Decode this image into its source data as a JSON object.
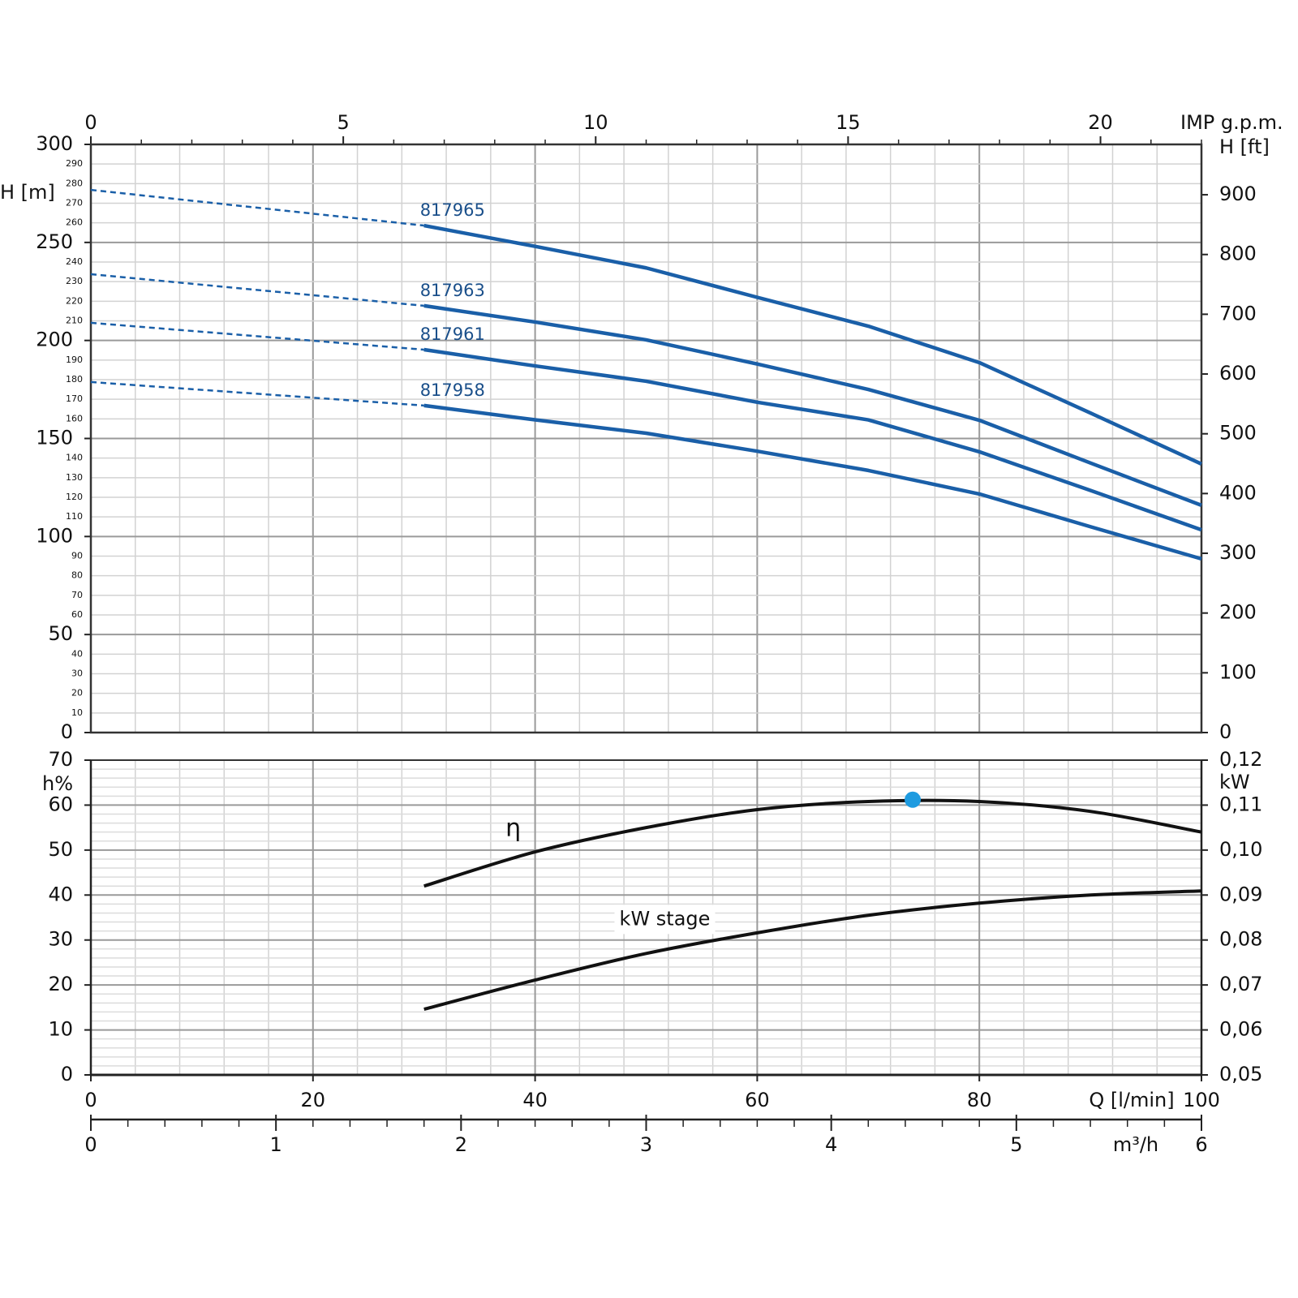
{
  "chart_data": [
    {
      "type": "line",
      "ylabel": "H [m]",
      "y2label": "H [ft]",
      "x2label": "IMP g.p.m.",
      "xlim": [
        0,
        100
      ],
      "x_grid": [
        0,
        4,
        8,
        12,
        16,
        20,
        24,
        28,
        32,
        36,
        40,
        44,
        48,
        52,
        56,
        60,
        64,
        68,
        72,
        76,
        80,
        84,
        88,
        92,
        96,
        100
      ],
      "x_grid_major": [
        0,
        20,
        40,
        60,
        80,
        100
      ],
      "x2lim": [
        0,
        22
      ],
      "x2ticks": [
        0,
        5,
        10,
        15,
        20
      ],
      "x2ticks_minor": [
        1,
        2,
        3,
        4,
        6,
        7,
        8,
        9,
        11,
        12,
        13,
        14,
        16,
        17,
        18,
        19,
        21,
        22
      ],
      "ylim": [
        0,
        300
      ],
      "yticks": [
        0,
        50,
        100,
        150,
        200,
        250,
        300
      ],
      "yticks_minor": [
        10,
        20,
        30,
        40,
        60,
        70,
        80,
        90,
        110,
        120,
        130,
        140,
        160,
        170,
        180,
        190,
        210,
        220,
        230,
        240,
        260,
        270,
        280,
        290
      ],
      "y2lim": [
        0,
        984.25
      ],
      "y2ticks": [
        0,
        100,
        200,
        300,
        400,
        500,
        600,
        700,
        800,
        900
      ],
      "grid": true,
      "dash_first_segment": true,
      "x": [
        0,
        30,
        40,
        50,
        60,
        70,
        80,
        90,
        100
      ],
      "series": [
        {
          "name": "817965",
          "color": "#1a5fa8",
          "values": [
            276.8,
            258.6,
            248,
            237,
            222,
            207.3,
            188.7,
            163,
            137
          ]
        },
        {
          "name": "817963",
          "color": "#1a5fa8",
          "values": [
            233.8,
            217.7,
            209.4,
            200.3,
            188,
            175,
            159.3,
            137.5,
            115.9
          ]
        },
        {
          "name": "817961",
          "color": "#1a5fa8",
          "values": [
            209,
            195.3,
            187,
            179.2,
            168.5,
            159.5,
            143.2,
            123.5,
            103.4
          ]
        },
        {
          "name": "817958",
          "color": "#1a5fa8",
          "values": [
            178.8,
            166.8,
            159.5,
            152.7,
            143.5,
            133.7,
            121.7,
            105,
            88.6
          ]
        }
      ]
    },
    {
      "type": "line",
      "ylabel": "h%",
      "y2label": "kW",
      "xlabel": "Q [l/min]",
      "x2label": "m³/h",
      "xlim": [
        0,
        100
      ],
      "xticks": [
        0,
        20,
        40,
        60,
        80,
        100
      ],
      "x_grid": [
        0,
        4,
        8,
        12,
        16,
        20,
        24,
        28,
        32,
        36,
        40,
        44,
        48,
        52,
        56,
        60,
        64,
        68,
        72,
        76,
        80,
        84,
        88,
        92,
        96,
        100
      ],
      "x2lim": [
        0,
        6
      ],
      "x2ticks": [
        0,
        1,
        2,
        3,
        4,
        5,
        6
      ],
      "x2ticks_minor": [
        0.2,
        0.4,
        0.6,
        0.8,
        1.2,
        1.4,
        1.6,
        1.8,
        2.2,
        2.4,
        2.6,
        2.8,
        3.2,
        3.4,
        3.6,
        3.8,
        4.2,
        4.4,
        4.6,
        4.8,
        5.2,
        5.4,
        5.6,
        5.8
      ],
      "ylim": [
        0,
        70
      ],
      "yticks": [
        0,
        10,
        20,
        30,
        40,
        50,
        60,
        70
      ],
      "y_grid": [
        2,
        4,
        6,
        8,
        12,
        14,
        16,
        18,
        22,
        24,
        26,
        28,
        32,
        34,
        36,
        38,
        42,
        44,
        46,
        48,
        52,
        54,
        56,
        58,
        62,
        64,
        66,
        68
      ],
      "y2lim": [
        0.05,
        0.12
      ],
      "y2ticks": [
        {
          "value": 0.05,
          "label": "0,05"
        },
        {
          "value": 0.06,
          "label": "0,06"
        },
        {
          "value": 0.07,
          "label": "0,07"
        },
        {
          "value": 0.08,
          "label": "0,08"
        },
        {
          "value": 0.09,
          "label": "0,09"
        },
        {
          "value": 0.1,
          "label": "0,10"
        },
        {
          "value": 0.11,
          "label": "0,11"
        },
        {
          "value": 0.12,
          "label": "0,12"
        }
      ],
      "grid": true,
      "x": [
        30,
        40,
        50,
        60,
        70,
        80,
        90,
        100
      ],
      "series": [
        {
          "name": "η",
          "color": "#111111",
          "axis": "y",
          "values": [
            42,
            49.6,
            55,
            59,
            60.8,
            60.8,
            58.6,
            54
          ]
        },
        {
          "name": "kW stage",
          "color": "#111111",
          "axis": "y2",
          "values": [
            0.0646,
            0.0711,
            0.077,
            0.0816,
            0.0855,
            0.0882,
            0.09,
            0.0909
          ]
        }
      ],
      "bep": {
        "x": 74,
        "value": 61.2,
        "color": "#1e9be0"
      }
    }
  ]
}
